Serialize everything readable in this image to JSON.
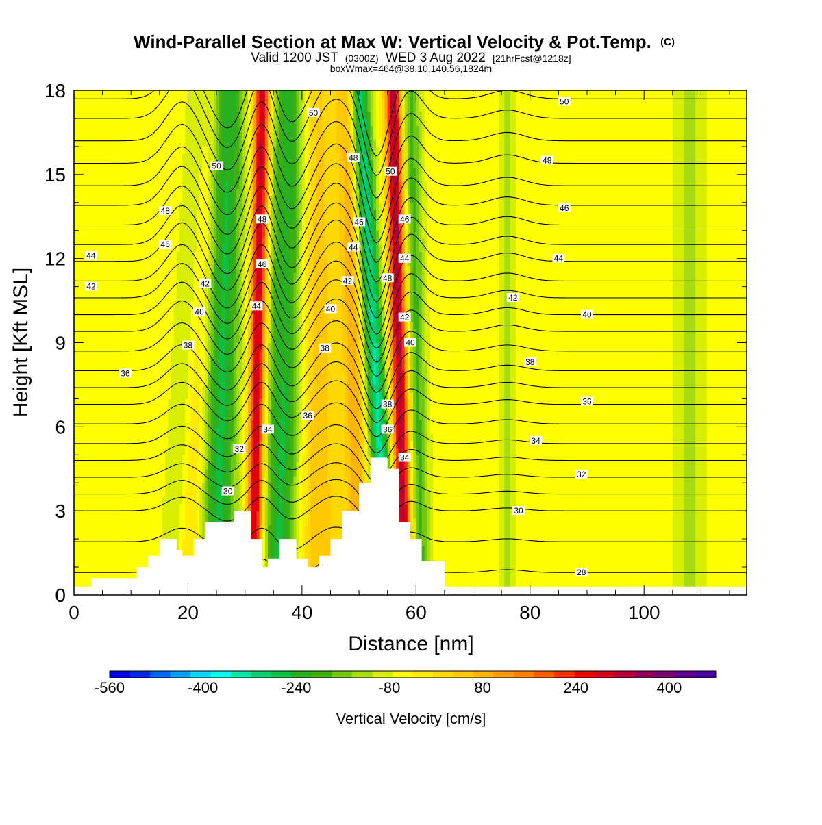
{
  "chart_data": {
    "type": "heatmap",
    "title": "Wind-Parallel Section at Max W: Vertical Velocity & Pot.Temp.",
    "title_mark": "(C)",
    "subtitle": {
      "valid_prefix": "Valid 1200 JST",
      "utc": "(0300Z)",
      "date": "WED 3 Aug 2022",
      "forecast": "[21hrFcst@1218z]"
    },
    "subtitle2": "boxWmax=464@38.10,140.56,1824m",
    "xlabel": "Distance [nm]",
    "ylabel": "Height [Kft MSL]",
    "xlim": [
      0,
      118
    ],
    "ylim": [
      0,
      18
    ],
    "x_ticks": [
      "0",
      "20",
      "40",
      "60",
      "80",
      "100"
    ],
    "x_tick_values": [
      0,
      20,
      40,
      60,
      80,
      100
    ],
    "y_ticks": [
      "0",
      "3",
      "6",
      "9",
      "12",
      "15",
      "18"
    ],
    "y_tick_values": [
      0,
      3,
      6,
      9,
      12,
      15,
      18
    ],
    "colorbar": {
      "label": "Vertical Velocity [cm/s]",
      "tick_labels": [
        "-560",
        "-400",
        "-240",
        "-80",
        "80",
        "240",
        "400"
      ],
      "tick_values": [
        -560,
        -400,
        -240,
        -80,
        80,
        240,
        400
      ],
      "bounds": [
        -560,
        480
      ],
      "step": 40,
      "colors": [
        "#0000ee",
        "#0028f0",
        "#0064f5",
        "#00a0f8",
        "#00d8ff",
        "#00ffee",
        "#00e6a8",
        "#00d070",
        "#10c040",
        "#28b020",
        "#40b010",
        "#70c810",
        "#a8dc10",
        "#d8ee00",
        "#ffff00",
        "#ffea00",
        "#ffd800",
        "#ffc800",
        "#ffb400",
        "#ff9c00",
        "#ff8000",
        "#ff5a00",
        "#ff3000",
        "#ee0000",
        "#d4001c",
        "#b40038",
        "#900058",
        "#780070",
        "#600090",
        "#4a00a0"
      ]
    },
    "wind_bands": [
      {
        "x_at_0": 17,
        "x_at_18": 22,
        "w": -80,
        "sigma": 1.6
      },
      {
        "x_at_0": 20,
        "x_at_18": 24,
        "w": 80,
        "sigma": 1.7
      },
      {
        "x_at_0": 25,
        "x_at_18": 27,
        "w": -240,
        "sigma": 2.2
      },
      {
        "x_at_0": 31.5,
        "x_at_18": 33,
        "w": 440,
        "sigma": 0.95
      },
      {
        "x_at_0": 36,
        "x_at_18": 38,
        "w": -240,
        "sigma": 2.3
      },
      {
        "x_at_0": 43,
        "x_at_18": 42,
        "w": 120,
        "sigma": 2.6
      },
      {
        "x_at_0": 55,
        "x_at_18": 50,
        "w": -320,
        "sigma": 1.3
      },
      {
        "x_at_0": 58,
        "x_at_18": 56,
        "w": 440,
        "sigma": 1.0
      },
      {
        "x_at_0": 61,
        "x_at_18": 59,
        "w": -160,
        "sigma": 1.3
      },
      {
        "x_at_0": 50,
        "x_at_18": 48,
        "w": 160,
        "sigma": 1.4
      },
      {
        "x_at_0": 76,
        "x_at_18": 76,
        "w": -80,
        "sigma": 0.9
      },
      {
        "x_at_0": 108,
        "x_at_18": 108,
        "w": -80,
        "sigma": 2.0
      }
    ],
    "background_w": 30,
    "terrain": [
      [
        0,
        0.3
      ],
      [
        3,
        0.3
      ],
      [
        3,
        0.6
      ],
      [
        11,
        0.6
      ],
      [
        11,
        1.0
      ],
      [
        13,
        1.0
      ],
      [
        13,
        1.4
      ],
      [
        15,
        1.4
      ],
      [
        15,
        2.0
      ],
      [
        18,
        2.0
      ],
      [
        18,
        1.6
      ],
      [
        19,
        1.6
      ],
      [
        19,
        1.4
      ],
      [
        21,
        1.4
      ],
      [
        21,
        2.0
      ],
      [
        23,
        2.0
      ],
      [
        23,
        2.6
      ],
      [
        28,
        2.6
      ],
      [
        28,
        3.0
      ],
      [
        31,
        3.0
      ],
      [
        31,
        2.0
      ],
      [
        33,
        2.0
      ],
      [
        33,
        1.0
      ],
      [
        34,
        1.0
      ],
      [
        34,
        1.3
      ],
      [
        36,
        1.3
      ],
      [
        36,
        2.0
      ],
      [
        39,
        2.0
      ],
      [
        39,
        1.3
      ],
      [
        41,
        1.3
      ],
      [
        41,
        1.0
      ],
      [
        43,
        1.0
      ],
      [
        43,
        1.4
      ],
      [
        45,
        1.4
      ],
      [
        45,
        2.0
      ],
      [
        47,
        2.0
      ],
      [
        47,
        3.0
      ],
      [
        50,
        3.0
      ],
      [
        50,
        4.0
      ],
      [
        52,
        4.0
      ],
      [
        52,
        4.9
      ],
      [
        55,
        4.9
      ],
      [
        55,
        4.5
      ],
      [
        57,
        4.5
      ],
      [
        57,
        2.6
      ],
      [
        59,
        2.6
      ],
      [
        59,
        2.0
      ],
      [
        61,
        2.0
      ],
      [
        61,
        1.2
      ],
      [
        65,
        1.2
      ],
      [
        65,
        0.3
      ],
      [
        118,
        0.3
      ]
    ],
    "isentropes": [
      {
        "theta": 28,
        "base": 0.8,
        "label": "28"
      },
      {
        "theta": 29,
        "base": 1.9,
        "label": ""
      },
      {
        "theta": 30,
        "base": 3.0,
        "label": "30"
      },
      {
        "theta": 31,
        "base": 3.6,
        "label": ""
      },
      {
        "theta": 32,
        "base": 4.2,
        "label": "32"
      },
      {
        "theta": 33,
        "base": 4.8,
        "label": ""
      },
      {
        "theta": 34,
        "base": 5.4,
        "label": "34"
      },
      {
        "theta": 35,
        "base": 6.1,
        "label": ""
      },
      {
        "theta": 36,
        "base": 6.8,
        "label": "36"
      },
      {
        "theta": 37,
        "base": 7.4,
        "label": ""
      },
      {
        "theta": 38,
        "base": 8.0,
        "label": "38"
      },
      {
        "theta": 39,
        "base": 8.7,
        "label": ""
      },
      {
        "theta": 40,
        "base": 9.4,
        "label": "40"
      },
      {
        "theta": 41,
        "base": 10.0,
        "label": ""
      },
      {
        "theta": 42,
        "base": 10.6,
        "label": "42"
      },
      {
        "theta": 43,
        "base": 11.2,
        "label": ""
      },
      {
        "theta": 44,
        "base": 11.9,
        "label": "44"
      },
      {
        "theta": 45,
        "base": 12.5,
        "label": ""
      },
      {
        "theta": 46,
        "base": 13.2,
        "label": "46"
      },
      {
        "theta": 47,
        "base": 13.9,
        "label": ""
      },
      {
        "theta": 48,
        "base": 14.6,
        "label": "48"
      },
      {
        "theta": 49,
        "base": 15.4,
        "label": ""
      },
      {
        "theta": 50,
        "base": 16.2,
        "label": "50"
      },
      {
        "theta": 51,
        "base": 17.0,
        "label": ""
      },
      {
        "theta": 52,
        "base": 17.7,
        "label": ""
      }
    ],
    "wave_perturbations": [
      {
        "x": 19,
        "dz": 1.4,
        "sigma": 2.8
      },
      {
        "x": 27,
        "dz": -1.1,
        "sigma": 2.6
      },
      {
        "x": 33,
        "dz": 1.6,
        "sigma": 2.2
      },
      {
        "x": 38,
        "dz": -1.0,
        "sigma": 2.5
      },
      {
        "x": 46,
        "dz": 1.5,
        "sigma": 3.2
      },
      {
        "x": 53,
        "dz": -2.2,
        "sigma": 2.0
      },
      {
        "x": 59,
        "dz": 1.0,
        "sigma": 2.2
      },
      {
        "x": 76,
        "dz": 0.3,
        "sigma": 3.0
      }
    ],
    "contour_labels": [
      {
        "text": "50",
        "x": 55.5,
        "z": 15.1
      },
      {
        "text": "48",
        "x": 33,
        "z": 13.4
      },
      {
        "text": "46",
        "x": 33,
        "z": 11.8
      },
      {
        "text": "44",
        "x": 32,
        "z": 10.3
      },
      {
        "text": "48",
        "x": 55,
        "z": 11.3
      },
      {
        "text": "46",
        "x": 58,
        "z": 13.4
      },
      {
        "text": "44",
        "x": 58,
        "z": 12.0
      },
      {
        "text": "42",
        "x": 58,
        "z": 9.9
      },
      {
        "text": "40",
        "x": 59,
        "z": 9.0
      },
      {
        "text": "38",
        "x": 55,
        "z": 6.8
      },
      {
        "text": "36",
        "x": 55,
        "z": 5.9
      },
      {
        "text": "34",
        "x": 58,
        "z": 4.9
      },
      {
        "text": "50",
        "x": 42,
        "z": 17.2
      },
      {
        "text": "48",
        "x": 49,
        "z": 15.6
      },
      {
        "text": "46",
        "x": 50,
        "z": 13.3
      },
      {
        "text": "44",
        "x": 49,
        "z": 12.4
      },
      {
        "text": "42",
        "x": 48,
        "z": 11.2
      },
      {
        "text": "40",
        "x": 45,
        "z": 10.2
      },
      {
        "text": "38",
        "x": 44,
        "z": 8.8
      },
      {
        "text": "36",
        "x": 41,
        "z": 6.4
      },
      {
        "text": "34",
        "x": 34,
        "z": 5.9
      },
      {
        "text": "32",
        "x": 29,
        "z": 5.2
      },
      {
        "text": "30",
        "x": 27,
        "z": 3.7
      },
      {
        "text": "50",
        "x": 25,
        "z": 15.3
      },
      {
        "text": "48",
        "x": 16,
        "z": 13.7
      },
      {
        "text": "46",
        "x": 16,
        "z": 12.5
      },
      {
        "text": "44",
        "x": 3,
        "z": 12.1
      },
      {
        "text": "42",
        "x": 3,
        "z": 11.0
      },
      {
        "text": "42",
        "x": 23,
        "z": 11.1
      },
      {
        "text": "40",
        "x": 22,
        "z": 10.1
      },
      {
        "text": "38",
        "x": 20,
        "z": 8.9
      },
      {
        "text": "36",
        "x": 9,
        "z": 7.9
      },
      {
        "text": "50",
        "x": 86,
        "z": 17.6
      },
      {
        "text": "48",
        "x": 83,
        "z": 15.5
      },
      {
        "text": "46",
        "x": 86,
        "z": 13.8
      },
      {
        "text": "44",
        "x": 85,
        "z": 12.0
      },
      {
        "text": "42",
        "x": 77,
        "z": 10.6
      },
      {
        "text": "40",
        "x": 90,
        "z": 10.0
      },
      {
        "text": "38",
        "x": 80,
        "z": 8.3
      },
      {
        "text": "36",
        "x": 90,
        "z": 6.9
      },
      {
        "text": "34",
        "x": 81,
        "z": 5.5
      },
      {
        "text": "32",
        "x": 89,
        "z": 4.3
      },
      {
        "text": "30",
        "x": 78,
        "z": 3.0
      },
      {
        "text": "28",
        "x": 89,
        "z": 0.8
      }
    ]
  }
}
